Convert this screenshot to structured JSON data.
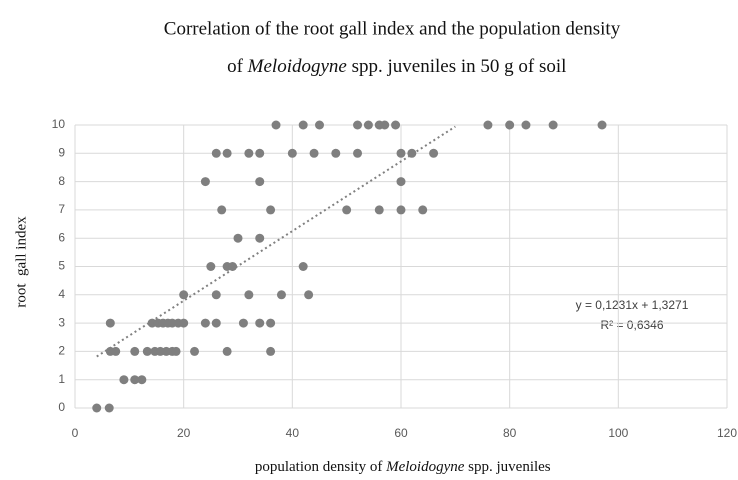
{
  "chart_data": {
    "type": "scatter",
    "title": {
      "line1": "Correlation of the root gall index and the population density",
      "line2": [
        "of ",
        "Meloidogyne",
        " spp. juveniles in 50 g of soil"
      ]
    },
    "x_label": [
      "population density of ",
      "Meloidogyne",
      " spp. juveniles"
    ],
    "y_label": "root  gall index",
    "color": "#7f7f7f",
    "x": [
      4,
      6.3,
      9,
      11,
      12.3,
      6.5,
      7.5,
      11,
      13.3,
      14.7,
      15.7,
      16.8,
      17.9,
      18.6,
      22,
      28,
      36,
      6.5,
      14.2,
      15.3,
      16.2,
      17.1,
      17.9,
      19,
      20,
      24,
      26,
      31,
      34,
      36,
      20,
      26,
      32,
      38,
      43,
      25,
      28,
      29,
      42,
      30,
      34,
      27,
      36,
      50,
      56,
      60,
      64,
      24,
      34,
      60,
      26,
      28,
      32,
      34,
      40,
      44,
      48,
      52,
      60,
      62,
      66,
      37,
      42,
      45,
      52,
      54,
      56,
      57,
      59,
      76,
      80,
      83,
      88,
      97
    ],
    "values": [
      0,
      0,
      1,
      1,
      1,
      2,
      2,
      2,
      2,
      2,
      2,
      2,
      2,
      2,
      2,
      2,
      2,
      3,
      3,
      3,
      3,
      3,
      3,
      3,
      3,
      3,
      3,
      3,
      3,
      3,
      4,
      4,
      4,
      4,
      4,
      5,
      5,
      5,
      5,
      6,
      6,
      7,
      7,
      7,
      7,
      7,
      7,
      8,
      8,
      8,
      9,
      9,
      9,
      9,
      9,
      9,
      9,
      9,
      9,
      9,
      9,
      10,
      10,
      10,
      10,
      10,
      10,
      10,
      10,
      10,
      10,
      10,
      10,
      10
    ],
    "trendline": {
      "slope": 0.1231,
      "intercept": 1.3271,
      "x_start": 4,
      "x_end": 70,
      "label": "y = 0,1231x + 1,3271",
      "r2_label": "R² = 0,6346"
    },
    "xlim": [
      0,
      120
    ],
    "xticks": [
      0,
      20,
      40,
      60,
      80,
      100,
      120
    ],
    "ylim": [
      0,
      10
    ],
    "yticks": [
      0,
      1,
      2,
      3,
      4,
      5,
      6,
      7,
      8,
      9,
      10
    ],
    "grid": true
  }
}
